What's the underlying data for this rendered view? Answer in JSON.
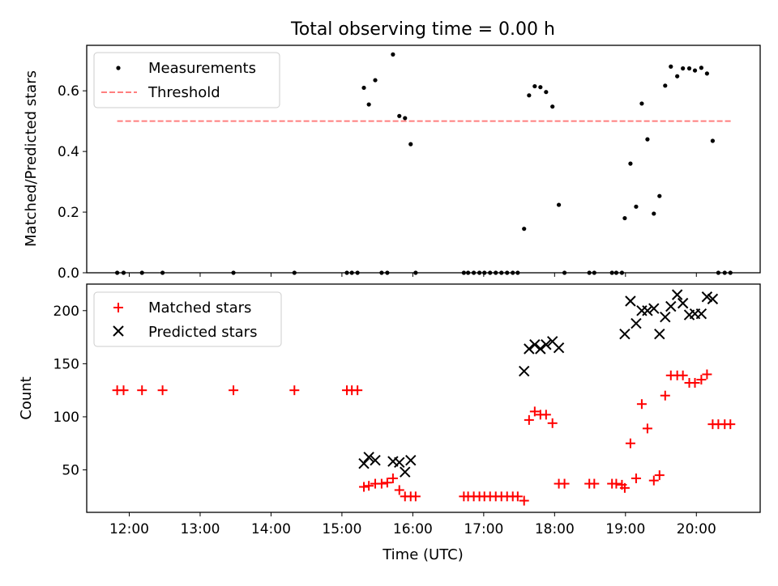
{
  "figure": {
    "title": "Total observing time = 0.00 h"
  },
  "chart_data": [
    {
      "type": "scatter",
      "ylabel": "Matched/Predicted stars",
      "xlim": [
        11.4,
        20.9
      ],
      "ylim": [
        0.0,
        0.75
      ],
      "yticks": [
        0.0,
        0.2,
        0.4,
        0.6
      ],
      "ytick_labels": [
        "0.0",
        "0.2",
        "0.4",
        "0.6"
      ],
      "grid": false,
      "legend_position": "top-left",
      "threshold": {
        "name": "Threshold",
        "y": 0.5,
        "x_range": [
          11.83,
          20.5
        ],
        "color": "#ff7f7f"
      },
      "series": [
        {
          "name": "Measurements",
          "color": "#000000",
          "x": [
            11.83,
            11.92,
            12.18,
            12.47,
            13.47,
            14.33,
            15.07,
            15.14,
            15.22,
            15.31,
            15.38,
            15.47,
            15.56,
            15.64,
            15.72,
            15.81,
            15.89,
            15.97,
            16.04,
            16.72,
            16.78,
            16.86,
            16.94,
            17.01,
            17.09,
            17.17,
            17.25,
            17.33,
            17.41,
            17.48,
            17.57,
            17.64,
            17.72,
            17.8,
            17.88,
            17.97,
            18.06,
            18.14,
            18.49,
            18.56,
            18.81,
            18.87,
            18.95,
            18.99,
            19.07,
            19.15,
            19.23,
            19.31,
            19.4,
            19.48,
            19.56,
            19.64,
            19.73,
            19.81,
            19.9,
            19.98,
            20.07,
            20.15,
            20.23,
            20.31,
            20.4,
            20.48
          ],
          "y": [
            0.0,
            0.0,
            0.0,
            0.0,
            0.0,
            0.0,
            0.0,
            0.0,
            0.0,
            0.61,
            0.555,
            0.635,
            0.0,
            0.0,
            0.72,
            0.517,
            0.51,
            0.424,
            0.0,
            0.0,
            0.0,
            0.0,
            0.0,
            0.0,
            0.0,
            0.0,
            0.0,
            0.0,
            0.0,
            0.0,
            0.145,
            0.585,
            0.615,
            0.612,
            0.596,
            0.548,
            0.224,
            0.0,
            0.0,
            0.0,
            0.0,
            0.0,
            0.0,
            0.18,
            0.36,
            0.218,
            0.558,
            0.44,
            0.195,
            0.253,
            0.617,
            0.68,
            0.648,
            0.674,
            0.674,
            0.667,
            0.676,
            0.657,
            0.435,
            0.0,
            0.0,
            0.0
          ]
        }
      ]
    },
    {
      "type": "scatter",
      "xlabel": "Time (UTC)",
      "ylabel": "Count",
      "xlim": [
        11.4,
        20.9
      ],
      "ylim": [
        10,
        225
      ],
      "yticks": [
        50,
        100,
        150,
        200
      ],
      "ytick_labels": [
        "50",
        "100",
        "150",
        "200"
      ],
      "xticks": [
        12,
        13,
        14,
        15,
        16,
        17,
        18,
        19,
        20
      ],
      "xtick_labels": [
        "12:00",
        "13:00",
        "14:00",
        "15:00",
        "16:00",
        "17:00",
        "18:00",
        "19:00",
        "20:00"
      ],
      "grid": false,
      "legend_position": "top-left",
      "series": [
        {
          "name": "Matched stars",
          "marker": "plus",
          "color": "#ff0000",
          "x": [
            11.83,
            11.92,
            12.18,
            12.47,
            13.47,
            14.33,
            15.07,
            15.14,
            15.22,
            15.31,
            15.38,
            15.47,
            15.56,
            15.64,
            15.72,
            15.81,
            15.89,
            15.97,
            16.04,
            16.72,
            16.78,
            16.86,
            16.94,
            17.01,
            17.09,
            17.17,
            17.25,
            17.33,
            17.41,
            17.48,
            17.57,
            17.64,
            17.72,
            17.8,
            17.88,
            17.97,
            18.06,
            18.14,
            18.49,
            18.56,
            18.81,
            18.87,
            18.95,
            18.99,
            19.07,
            19.15,
            19.23,
            19.31,
            19.4,
            19.48,
            19.56,
            19.64,
            19.73,
            19.81,
            19.9,
            19.98,
            20.07,
            20.15,
            20.23,
            20.31,
            20.4,
            20.48
          ],
          "y": [
            125,
            125,
            125,
            125,
            125,
            125,
            125,
            125,
            125,
            34,
            35,
            37,
            37,
            38,
            42,
            31,
            25,
            25,
            25,
            25,
            25,
            25,
            25,
            25,
            25,
            25,
            25,
            25,
            25,
            25,
            21,
            97,
            105,
            102,
            102,
            94,
            37,
            37,
            37,
            37,
            37,
            37,
            36,
            33,
            75,
            42,
            112,
            89,
            40,
            45,
            120,
            139,
            139,
            139,
            132,
            132,
            135,
            140,
            93,
            93,
            93,
            93
          ]
        },
        {
          "name": "Predicted stars",
          "marker": "x",
          "color": "#000000",
          "x": [
            15.31,
            15.38,
            15.47,
            15.72,
            15.81,
            15.89,
            15.97,
            17.57,
            17.64,
            17.72,
            17.8,
            17.88,
            17.97,
            18.06,
            18.99,
            19.07,
            19.15,
            19.23,
            19.31,
            19.4,
            19.48,
            19.56,
            19.64,
            19.73,
            19.81,
            19.9,
            19.98,
            20.07,
            20.15,
            20.23
          ],
          "y": [
            56,
            62,
            59,
            58,
            57,
            48,
            59,
            143,
            164,
            168,
            164,
            168,
            171,
            165,
            178,
            209,
            188,
            200,
            200,
            202,
            178,
            194,
            204,
            215,
            207,
            196,
            197,
            197,
            213,
            211
          ]
        }
      ]
    }
  ]
}
